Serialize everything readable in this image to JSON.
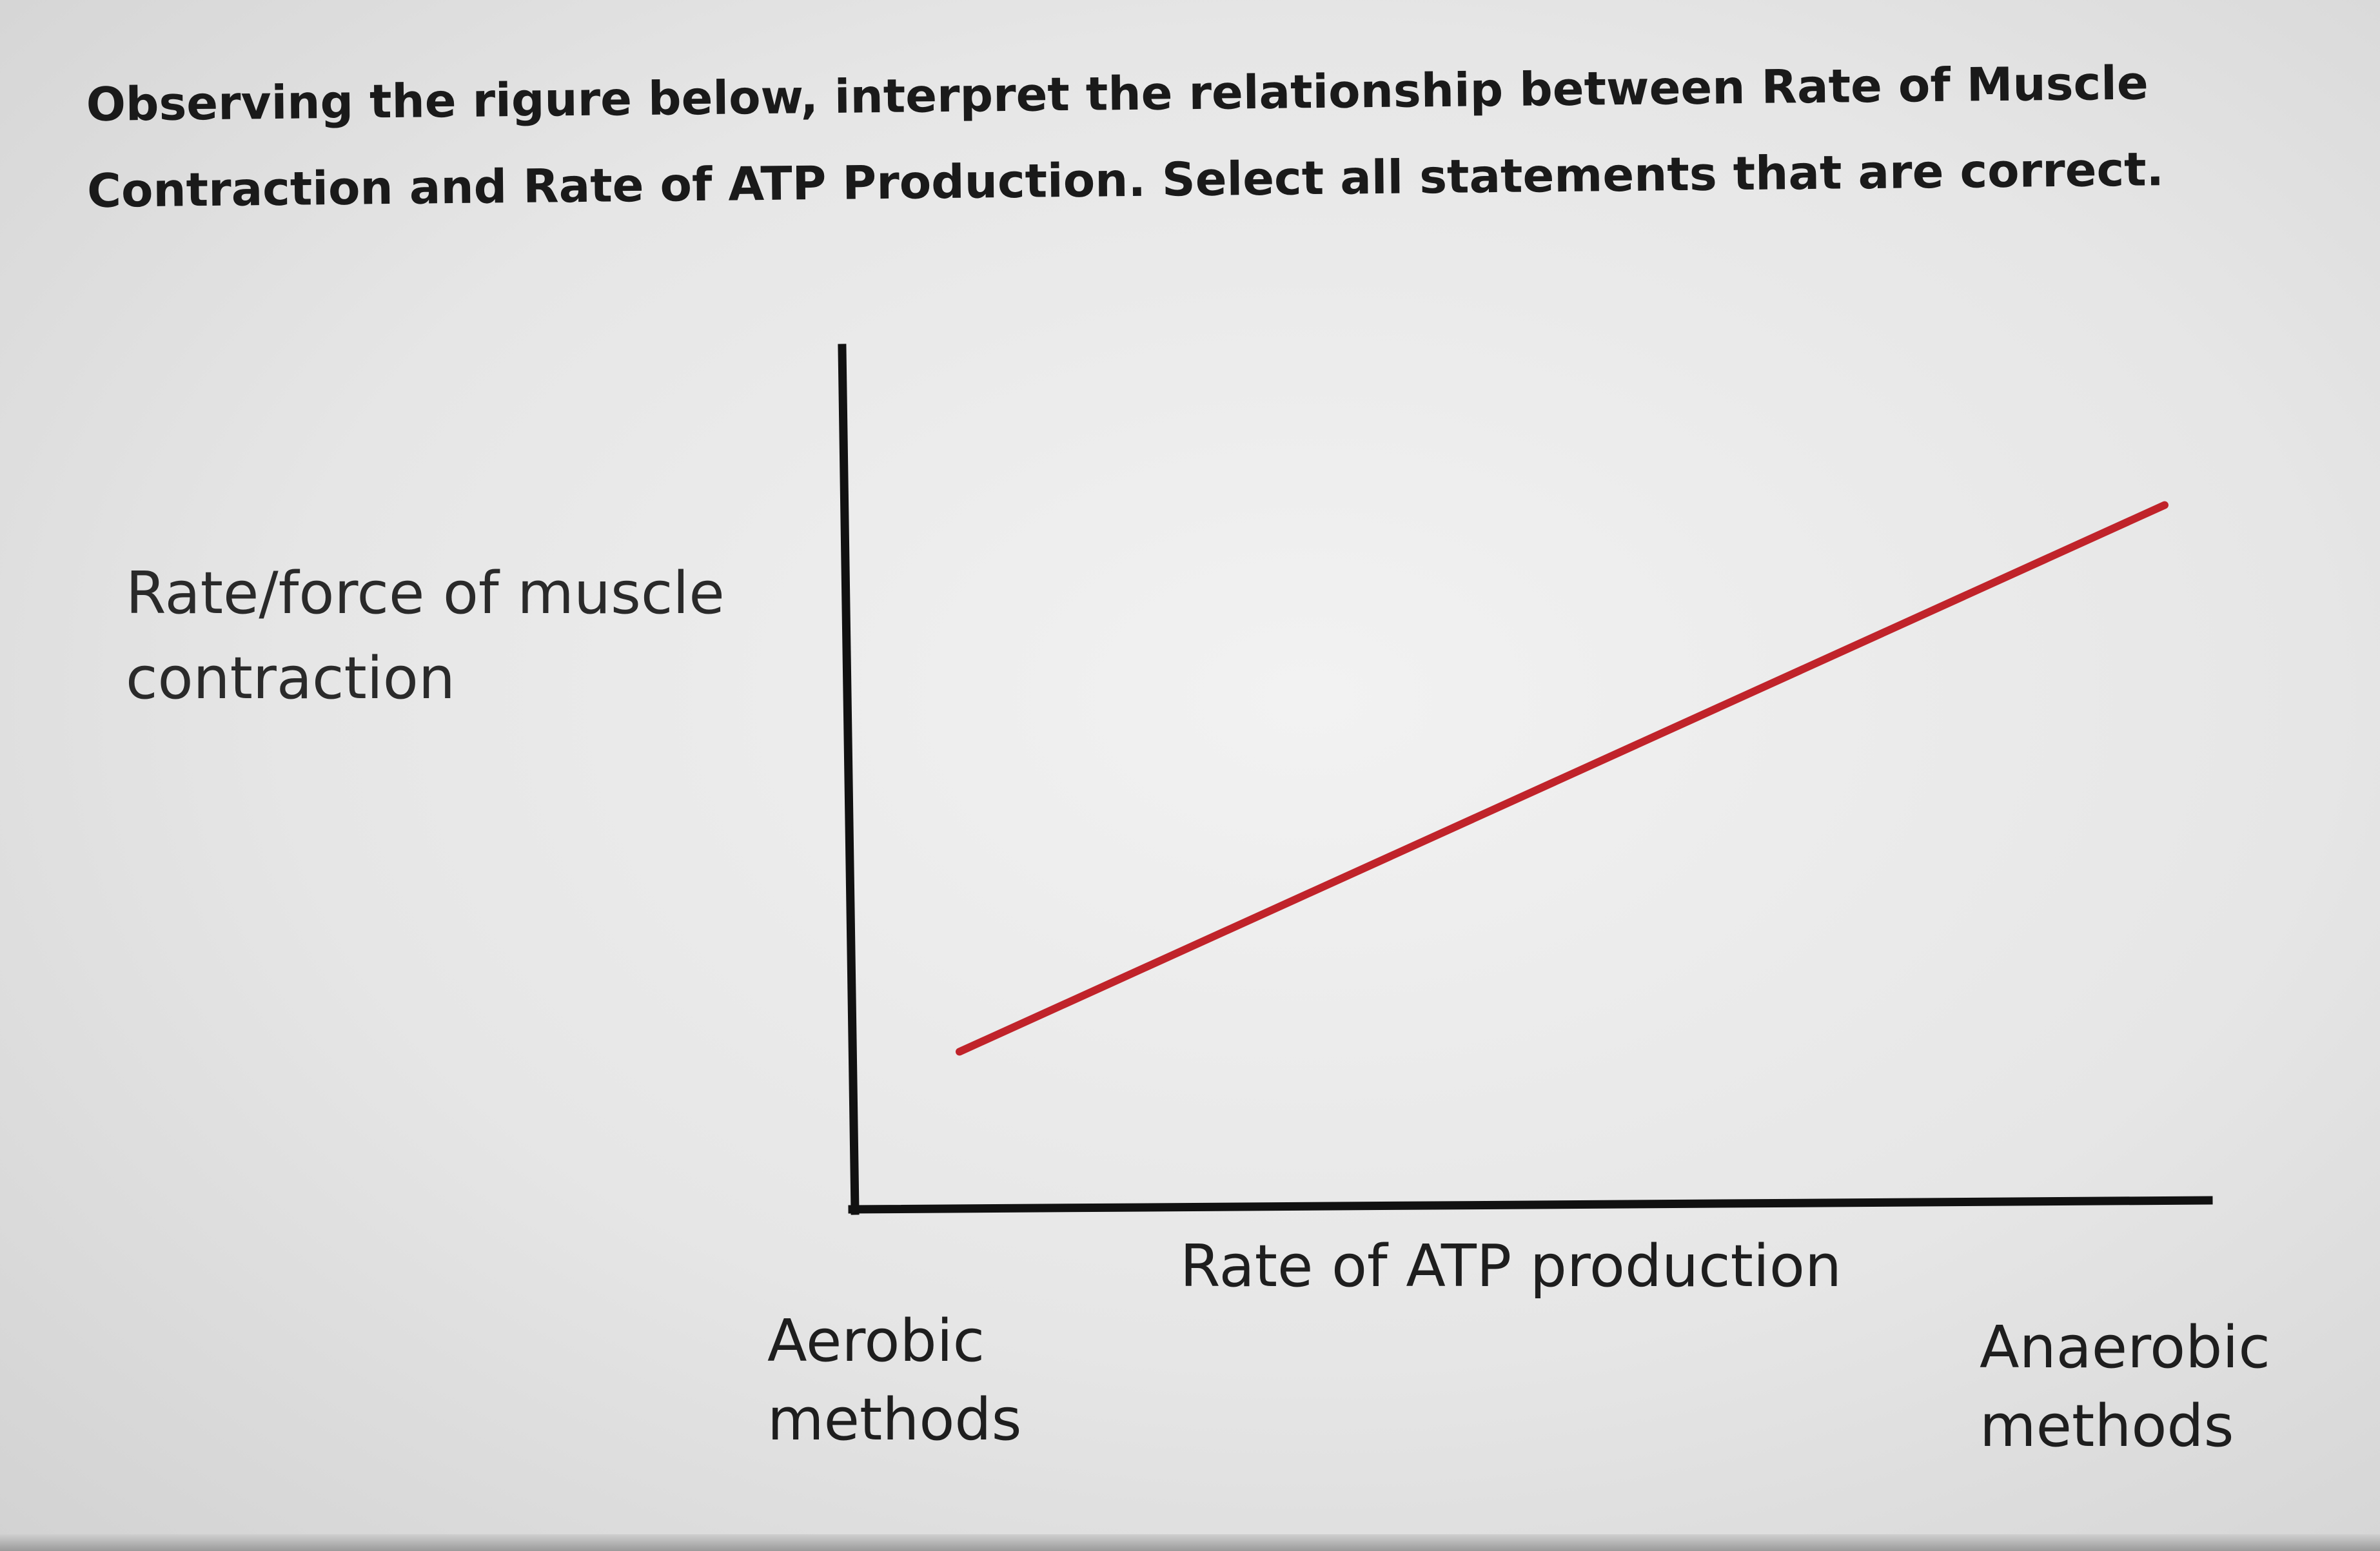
{
  "question": {
    "text": "Observing the rigure below, interpret the relationship between Rate of Muscle Contraction and Rate of ATP Production. Select all statements that are correct."
  },
  "chart_data": {
    "type": "line",
    "title": "",
    "ylabel": "Rate/force of muscle contraction",
    "xlabel": "Rate of ATP production",
    "x_categories": [
      "Aerobic methods",
      "Anaerobic methods"
    ],
    "xlim": [
      0,
      1
    ],
    "ylim": [
      0,
      1
    ],
    "grid": false,
    "legend": "none",
    "series": [
      {
        "color": "#c0232a",
        "points": [
          {
            "x": 0.08,
            "y": 0.18
          },
          {
            "x": 0.97,
            "y": 0.82
          }
        ]
      }
    ],
    "axis_color": "#111111"
  }
}
